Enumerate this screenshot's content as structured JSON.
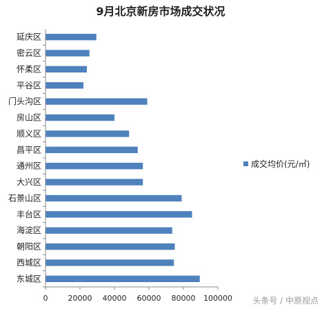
{
  "chart_data": {
    "type": "bar",
    "orientation": "horizontal",
    "title": "9月北京新房市场成交状况",
    "categories": [
      "延庆区",
      "密云区",
      "怀柔区",
      "平谷区",
      "门头沟区",
      "房山区",
      "顺义区",
      "昌平区",
      "通州区",
      "大兴区",
      "石景山区",
      "丰台区",
      "海淀区",
      "朝阳区",
      "西城区",
      "东城区"
    ],
    "series": [
      {
        "name": "成交均价(元/㎡)",
        "values": [
          29500,
          25500,
          24000,
          22000,
          59000,
          40000,
          48500,
          53500,
          56500,
          56500,
          79000,
          85000,
          73500,
          75000,
          74500,
          89500
        ],
        "color": "#4f81bd"
      }
    ],
    "xlim": [
      0,
      100000
    ],
    "xticks": [
      "0",
      "20000",
      "40000",
      "60000",
      "80000",
      "100000"
    ],
    "xlabel": "",
    "ylabel": "",
    "legend_position": "right",
    "grid": false
  },
  "watermark": "头条号 / 中原视点"
}
